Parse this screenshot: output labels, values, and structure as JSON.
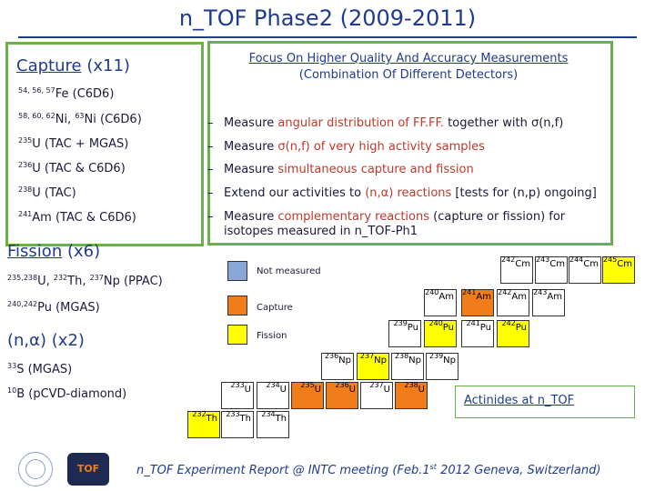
{
  "title": "n_TOF Phase2 (2009-2011)",
  "focus": {
    "line1": "Focus On Higher Quality And Accuracy Measurements",
    "line2": "(Combination Of Different Detectors)"
  },
  "bullets": {
    "b1_pre": "Measure ",
    "b1_hl": "angular distribution of FF.FF.",
    "b1_post": " together with σ(n,f)",
    "b2_pre": "Measure ",
    "b2_hl": "σ(n,f) of very high activity samples",
    "b2_post": "",
    "b3_pre": "Measure ",
    "b3_hl": "simultaneous capture and fission",
    "b3_post": "",
    "b4_pre": "Extend our activities to ",
    "b4_hl": "(n,α) reactions",
    "b4_post": " [tests for (n,p) ongoing]",
    "b5_pre": "Measure ",
    "b5_hl": "complementary reactions",
    "b5_post": " (capture or fission) for",
    "b5_line2": "isotopes measured in n_TOF-Ph1"
  },
  "capture": {
    "word": "Capture",
    "count": "(x11)",
    "l1_sup": "54, 56, 57",
    "l1_el": "Fe",
    "l1_rest": " (C6D6)",
    "l2_sup1": "58, 60, 62",
    "l2_el1": "Ni, ",
    "l2_sup2": "63",
    "l2_el2": "Ni",
    "l2_rest": " (C6D6)",
    "l3_sup": "235",
    "l3_el": "U",
    "l3_rest": " (TAC + MGAS)",
    "l4_sup": "236",
    "l4_el": "U",
    "l4_rest": " (TAC & C6D6)",
    "l5_sup": "238",
    "l5_el": "U",
    "l5_rest": " (TAC)",
    "l6_sup": "241",
    "l6_el": "Am",
    "l6_rest": " (TAC & C6D6)"
  },
  "fission": {
    "word": "Fission",
    "count": "(x6)",
    "l1_sup1": "235,238",
    "l1_el1": "U, ",
    "l1_sup2": "232",
    "l1_el2": "Th, ",
    "l1_sup3": "237",
    "l1_el3": "Np",
    "l1_rest": " (PPAC)",
    "l2_sup": "240,242",
    "l2_el": "Pu",
    "l2_rest": " (MGAS)"
  },
  "nalpha": {
    "word": "(n,α)",
    "count": "(x2)",
    "l1_sup": "33",
    "l1_el": "S",
    "l1_rest": " (MGAS)",
    "l2_sup": "10",
    "l2_el": "B",
    "l2_rest": " (pCVD-diamond)"
  },
  "legend": {
    "not_measured": "Not measured",
    "capture": "Capture",
    "fission": "Fission"
  },
  "chart": {
    "am243": "243",
    "am_el": "Am"
  },
  "cells": [
    {
      "sup": "242",
      "el": "Cm",
      "color": "white"
    },
    {
      "sup": "243",
      "el": "Cm",
      "color": "white"
    },
    {
      "sup": "244",
      "el": "Cm",
      "color": "white"
    },
    {
      "sup": "245",
      "el": "Cm",
      "color": "yellow"
    },
    {
      "sup": "240",
      "el": "Am",
      "color": "white"
    },
    {
      "sup": "241",
      "el": "Am",
      "color": "orange"
    },
    {
      "sup": "242",
      "el": "Am",
      "color": "white"
    },
    {
      "sup": "243",
      "el": "Am",
      "color": "white"
    },
    {
      "sup": "239",
      "el": "Pu",
      "color": "white"
    },
    {
      "sup": "240",
      "el": "Pu",
      "color": "yellow"
    },
    {
      "sup": "241",
      "el": "Pu",
      "color": "white"
    },
    {
      "sup": "242",
      "el": "Pu",
      "color": "yellow"
    },
    {
      "sup": "236",
      "el": "Np",
      "color": "white"
    },
    {
      "sup": "237",
      "el": "Np",
      "color": "yellow"
    },
    {
      "sup": "238",
      "el": "Np",
      "color": "white"
    },
    {
      "sup": "239",
      "el": "Np",
      "color": "white"
    },
    {
      "sup": "233",
      "el": "U",
      "color": "white"
    },
    {
      "sup": "234",
      "el": "U",
      "color": "white"
    },
    {
      "sup": "235",
      "el": "U",
      "color": "orange"
    },
    {
      "sup": "236",
      "el": "U",
      "color": "orange"
    },
    {
      "sup": "237",
      "el": "U",
      "color": "white"
    },
    {
      "sup": "238",
      "el": "U",
      "color": "orange"
    },
    {
      "sup": "232",
      "el": "Th",
      "color": "yellow"
    },
    {
      "sup": "233",
      "el": "Th",
      "color": "white"
    },
    {
      "sup": "234",
      "el": "Th",
      "color": "white"
    }
  ],
  "actinides": "Actinides at n_TOF",
  "footer": {
    "pre": "n_TOF Experiment Report @ INTC meeting (Feb.1",
    "sup": "st",
    "post": " 2012 Geneva, Switzerland)"
  },
  "logos": {
    "ntof": "TOF"
  },
  "colors": {
    "accent": "#1f3b8c",
    "box": "#6ab04c",
    "highlight": "#c0392b"
  }
}
